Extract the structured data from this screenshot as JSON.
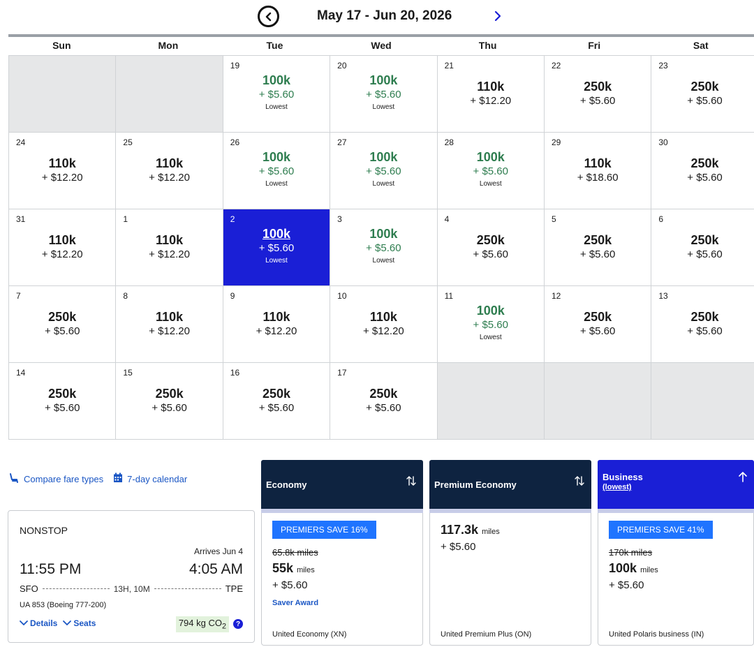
{
  "calendar": {
    "range_title": "May 17 - Jun 20, 2026",
    "prev_icon": "circle-chevron-left-icon",
    "next_icon": "chevron-right-icon",
    "weekdays": [
      "Sun",
      "Mon",
      "Tue",
      "Wed",
      "Thu",
      "Fri",
      "Sat"
    ],
    "lowest_label": "Lowest",
    "days": [
      {
        "empty": true
      },
      {
        "empty": true
      },
      {
        "day": "19",
        "miles": "100k",
        "fee": "+ $5.60",
        "lowest": true
      },
      {
        "day": "20",
        "miles": "100k",
        "fee": "+ $5.60",
        "lowest": true
      },
      {
        "day": "21",
        "miles": "110k",
        "fee": "+ $12.20"
      },
      {
        "day": "22",
        "miles": "250k",
        "fee": "+ $5.60"
      },
      {
        "day": "23",
        "miles": "250k",
        "fee": "+ $5.60"
      },
      {
        "day": "24",
        "miles": "110k",
        "fee": "+ $12.20"
      },
      {
        "day": "25",
        "miles": "110k",
        "fee": "+ $12.20"
      },
      {
        "day": "26",
        "miles": "100k",
        "fee": "+ $5.60",
        "lowest": true
      },
      {
        "day": "27",
        "miles": "100k",
        "fee": "+ $5.60",
        "lowest": true
      },
      {
        "day": "28",
        "miles": "100k",
        "fee": "+ $5.60",
        "lowest": true
      },
      {
        "day": "29",
        "miles": "110k",
        "fee": "+ $18.60"
      },
      {
        "day": "30",
        "miles": "250k",
        "fee": "+ $5.60"
      },
      {
        "day": "31",
        "miles": "110k",
        "fee": "+ $12.20"
      },
      {
        "day": "1",
        "miles": "110k",
        "fee": "+ $12.20"
      },
      {
        "day": "2",
        "miles": "100k",
        "fee": "+ $5.60",
        "lowest": true,
        "selected": true
      },
      {
        "day": "3",
        "miles": "100k",
        "fee": "+ $5.60",
        "lowest": true
      },
      {
        "day": "4",
        "miles": "250k",
        "fee": "+ $5.60"
      },
      {
        "day": "5",
        "miles": "250k",
        "fee": "+ $5.60"
      },
      {
        "day": "6",
        "miles": "250k",
        "fee": "+ $5.60"
      },
      {
        "day": "7",
        "miles": "250k",
        "fee": "+ $5.60"
      },
      {
        "day": "8",
        "miles": "110k",
        "fee": "+ $12.20"
      },
      {
        "day": "9",
        "miles": "110k",
        "fee": "+ $12.20"
      },
      {
        "day": "10",
        "miles": "110k",
        "fee": "+ $12.20"
      },
      {
        "day": "11",
        "miles": "100k",
        "fee": "+ $5.60",
        "lowest": true
      },
      {
        "day": "12",
        "miles": "250k",
        "fee": "+ $5.60"
      },
      {
        "day": "13",
        "miles": "250k",
        "fee": "+ $5.60"
      },
      {
        "day": "14",
        "miles": "250k",
        "fee": "+ $5.60"
      },
      {
        "day": "15",
        "miles": "250k",
        "fee": "+ $5.60"
      },
      {
        "day": "16",
        "miles": "250k",
        "fee": "+ $5.60"
      },
      {
        "day": "17",
        "miles": "250k",
        "fee": "+ $5.60"
      },
      {
        "empty": true
      },
      {
        "empty": true
      },
      {
        "empty": true
      }
    ],
    "colors": {
      "lowest": "#2e7d4f",
      "selected": "#1a1fd6",
      "empty": "#e6e7e8"
    }
  },
  "links": {
    "compare_label": "Compare fare types",
    "compare_icon": "seat-icon",
    "calendar7_label": "7-day calendar",
    "calendar7_icon": "calendar-icon"
  },
  "flight": {
    "stops": "NONSTOP",
    "arrives_note": "Arrives Jun 4",
    "depart_time": "11:55 PM",
    "arrive_time": "4:05 AM",
    "origin": "SFO",
    "duration": "13H, 10M",
    "destination": "TPE",
    "flight_info": "UA 853 (Boeing 777-200)",
    "details_label": "Details",
    "seats_label": "Seats",
    "co2_value": "794 kg CO",
    "co2_sub": "2",
    "info_icon": "question-circle-icon"
  },
  "fares": {
    "economy": {
      "header": "Economy",
      "badge": "PREMIERS SAVE 16%",
      "old_miles": "65.8k miles",
      "miles": "55k",
      "miles_unit": "miles",
      "fee": "+ $5.60",
      "award": "Saver Award",
      "fare_name": "United Economy (XN)"
    },
    "premium": {
      "header": "Premium Economy",
      "miles": "117.3k",
      "miles_unit": "miles",
      "fee": "+ $5.60",
      "fare_name": "United Premium Plus (ON)"
    },
    "business": {
      "header": "Business",
      "sub": "(lowest)",
      "badge": "PREMIERS SAVE 41%",
      "old_miles": "170k miles",
      "miles": "100k",
      "miles_unit": "miles",
      "fee": "+ $5.60",
      "fare_name": "United Polaris business (IN)"
    },
    "sort_icon": "sort-arrows-icon",
    "sort_active_icon": "arrow-up-icon"
  }
}
